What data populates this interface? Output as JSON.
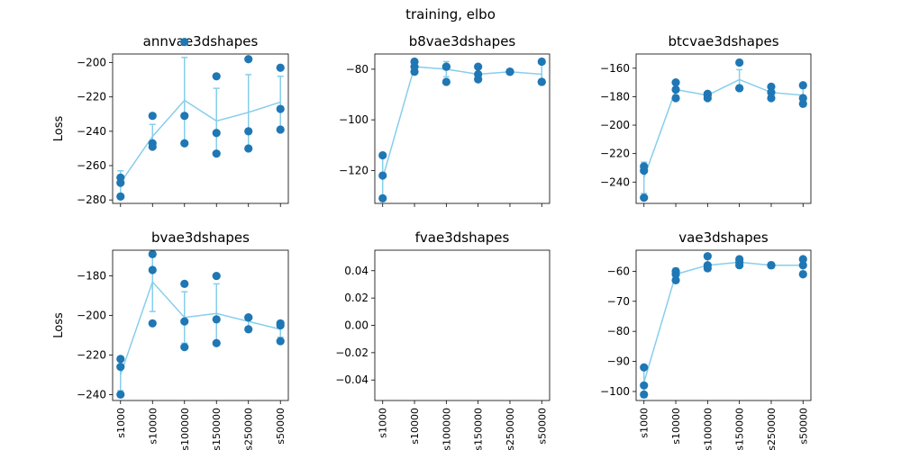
{
  "figure": {
    "suptitle": "training, elbo"
  },
  "chart_data": [
    {
      "type": "line",
      "title": "annvae3dshapes",
      "ylabel": "Loss",
      "xlabel": "",
      "categories": [
        "s1000",
        "s10000",
        "s100000",
        "s150000",
        "s250000",
        "s50000"
      ],
      "yticks": [
        -280,
        -260,
        -240,
        -220,
        -200
      ],
      "ylim": [
        -282,
        -195
      ],
      "show_xticklabels": false,
      "mean": [
        -270,
        -243,
        -222,
        -234,
        -229,
        -223
      ],
      "err": [
        7,
        7,
        25,
        19,
        22,
        15
      ],
      "points": [
        [
          -267,
          -278,
          -270
        ],
        [
          -231,
          -247,
          -249
        ],
        [
          -188,
          -231,
          -247
        ],
        [
          -208,
          -241,
          -253
        ],
        [
          -198,
          -240,
          -250
        ],
        [
          -203,
          -227,
          -239
        ]
      ],
      "line_color": "#87ceeb",
      "point_color": "#1f77b4"
    },
    {
      "type": "line",
      "title": "b8vae3dshapes",
      "ylabel": "",
      "xlabel": "",
      "categories": [
        "s1000",
        "s10000",
        "s100000",
        "s150000",
        "s250000",
        "s50000"
      ],
      "yticks": [
        -120,
        -100,
        -80
      ],
      "ylim": [
        -133,
        -74
      ],
      "show_xticklabels": false,
      "mean": [
        -123,
        -79,
        -80,
        -82,
        -81,
        -82
      ],
      "err": [
        8,
        2,
        3,
        3,
        1,
        4
      ],
      "points": [
        [
          -114,
          -122,
          -131
        ],
        [
          -77,
          -81,
          -79
        ],
        [
          -79,
          -85,
          -79
        ],
        [
          -79,
          -84,
          -82
        ],
        [
          -81,
          -81,
          -81
        ],
        [
          -77,
          -85,
          -85
        ]
      ],
      "line_color": "#87ceeb",
      "point_color": "#1f77b4"
    },
    {
      "type": "line",
      "title": "btcvae3dshapes",
      "ylabel": "",
      "xlabel": "",
      "categories": [
        "s1000",
        "s10000",
        "s100000",
        "s150000",
        "s250000",
        "s50000"
      ],
      "yticks": [
        -240,
        -220,
        -200,
        -180,
        -160
      ],
      "ylim": [
        -255,
        -150
      ],
      "show_xticklabels": false,
      "mean": [
        -237,
        -175,
        -179,
        -168,
        -177,
        -179
      ],
      "err": [
        11,
        4,
        2,
        7,
        5,
        5
      ],
      "points": [
        [
          -229,
          -232,
          -251
        ],
        [
          -170,
          -181,
          -175
        ],
        [
          -178,
          -181,
          -179
        ],
        [
          -156,
          -174,
          -174
        ],
        [
          -173,
          -181,
          -177
        ],
        [
          -172,
          -181,
          -185
        ]
      ],
      "line_color": "#87ceeb",
      "point_color": "#1f77b4"
    },
    {
      "type": "line",
      "title": "bvae3dshapes",
      "ylabel": "Loss",
      "xlabel": "",
      "categories": [
        "s1000",
        "s10000",
        "s100000",
        "s150000",
        "s250000",
        "s50000"
      ],
      "yticks": [
        -240,
        -220,
        -200,
        -180
      ],
      "ylim": [
        -243,
        -167
      ],
      "show_xticklabels": true,
      "mean": [
        -230,
        -183,
        -201,
        -199,
        -203,
        -207
      ],
      "err": [
        8,
        15,
        13,
        15,
        3,
        4
      ],
      "points": [
        [
          -222,
          -226,
          -240
        ],
        [
          -169,
          -177,
          -204
        ],
        [
          -184,
          -203,
          -216
        ],
        [
          -180,
          -202,
          -214
        ],
        [
          -201,
          -207,
          -201
        ],
        [
          -204,
          -213,
          -205
        ]
      ],
      "line_color": "#87ceeb",
      "point_color": "#1f77b4"
    },
    {
      "type": "line",
      "title": "fvae3dshapes",
      "ylabel": "",
      "xlabel": "",
      "categories": [
        "s1000",
        "s10000",
        "s100000",
        "s150000",
        "s250000",
        "s50000"
      ],
      "yticks": [
        -0.04,
        -0.02,
        0.0,
        0.02,
        0.04
      ],
      "ytick_labels": [
        "−0.04",
        "−0.02",
        "0.00",
        "0.02",
        "0.04"
      ],
      "ylim": [
        -0.055,
        0.055
      ],
      "show_xticklabels": true,
      "empty": true,
      "mean": [],
      "err": [],
      "points": [],
      "line_color": "#87ceeb",
      "point_color": "#1f77b4"
    },
    {
      "type": "line",
      "title": "vae3dshapes",
      "ylabel": "",
      "xlabel": "",
      "categories": [
        "s1000",
        "s10000",
        "s100000",
        "s150000",
        "s250000",
        "s50000"
      ],
      "yticks": [
        -100,
        -90,
        -80,
        -70,
        -60
      ],
      "ylim": [
        -103,
        -53
      ],
      "show_xticklabels": true,
      "mean": [
        -97,
        -61,
        -58,
        -57,
        -58,
        -58
      ],
      "err": [
        5,
        2,
        2,
        1,
        1,
        2
      ],
      "points": [
        [
          -92,
          -98,
          -101
        ],
        [
          -60,
          -63,
          -61
        ],
        [
          -55,
          -59,
          -58
        ],
        [
          -56,
          -58,
          -57
        ],
        [
          -58,
          -58,
          -58
        ],
        [
          -56,
          -61,
          -58
        ]
      ],
      "line_color": "#87ceeb",
      "point_color": "#1f77b4"
    }
  ]
}
